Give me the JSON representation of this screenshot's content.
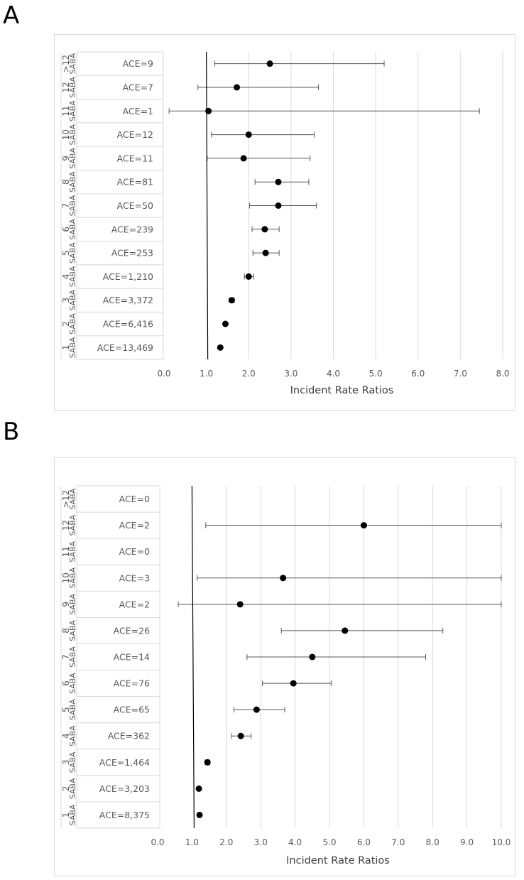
{
  "chart_data": [
    {
      "panel": "A",
      "type": "forest",
      "xlabel": "Incident Rate Ratios",
      "xlim": [
        0,
        8
      ],
      "xticks": [
        "0.0",
        "1.0",
        "2.0",
        "3.0",
        "4.0",
        "5.0",
        "6.0",
        "7.0",
        "8.0"
      ],
      "reference_x": 1,
      "group_label": "SABA",
      "rows": [
        {
          "group": ">12",
          "label": "ACE=9",
          "value": 2.5,
          "lo": 1.2,
          "hi": 5.2
        },
        {
          "group": "12",
          "label": "ACE=7",
          "value": 1.72,
          "lo": 0.8,
          "hi": 3.65
        },
        {
          "group": "11",
          "label": "ACE=1",
          "value": 1.05,
          "lo": 0.12,
          "hi": 7.45
        },
        {
          "group": "10",
          "label": "ACE=12",
          "value": 2.0,
          "lo": 1.12,
          "hi": 3.55
        },
        {
          "group": "9",
          "label": "ACE=11",
          "value": 1.88,
          "lo": 1.02,
          "hi": 3.45
        },
        {
          "group": "8",
          "label": "ACE=81",
          "value": 2.7,
          "lo": 2.15,
          "hi": 3.42
        },
        {
          "group": "7",
          "label": "ACE=50",
          "value": 2.7,
          "lo": 2.02,
          "hi": 3.6
        },
        {
          "group": "6",
          "label": "ACE=239",
          "value": 2.38,
          "lo": 2.08,
          "hi": 2.72
        },
        {
          "group": "5",
          "label": "ACE=253",
          "value": 2.4,
          "lo": 2.1,
          "hi": 2.72
        },
        {
          "group": "4",
          "label": "ACE=1,210",
          "value": 2.0,
          "lo": 1.9,
          "hi": 2.12
        },
        {
          "group": "3",
          "label": "ACE=3,372",
          "value": 1.6,
          "lo": 1.54,
          "hi": 1.66
        },
        {
          "group": "2",
          "label": "ACE=6,416",
          "value": 1.45,
          "lo": 1.42,
          "hi": 1.48
        },
        {
          "group": "1",
          "label": "ACE=13,469",
          "value": 1.33,
          "lo": 1.31,
          "hi": 1.35
        }
      ]
    },
    {
      "panel": "B",
      "type": "forest",
      "xlabel": "Incident Rate Ratios",
      "xlim": [
        0,
        10
      ],
      "xticks": [
        "0.0",
        "1.0",
        "2.0",
        "3.0",
        "4.0",
        "5.0",
        "6.0",
        "7.0",
        "8.0",
        "9.0",
        "10.0"
      ],
      "reference_x": 1,
      "group_label": "SABA",
      "rows": [
        {
          "group": ">12",
          "label": "ACE=0",
          "value": null,
          "lo": null,
          "hi": null
        },
        {
          "group": "12",
          "label": "ACE=2",
          "value": 6.0,
          "lo": 1.4,
          "hi": 10.0
        },
        {
          "group": "11",
          "label": "ACE=0",
          "value": null,
          "lo": null,
          "hi": null
        },
        {
          "group": "10",
          "label": "ACE=3",
          "value": 3.65,
          "lo": 1.15,
          "hi": 10.0
        },
        {
          "group": "9",
          "label": "ACE=2",
          "value": 2.4,
          "lo": 0.6,
          "hi": 10.0
        },
        {
          "group": "8",
          "label": "ACE=26",
          "value": 5.45,
          "lo": 3.6,
          "hi": 8.3
        },
        {
          "group": "7",
          "label": "ACE=14",
          "value": 4.5,
          "lo": 2.6,
          "hi": 7.8
        },
        {
          "group": "6",
          "label": "ACE=76",
          "value": 3.95,
          "lo": 3.05,
          "hi": 5.05
        },
        {
          "group": "5",
          "label": "ACE=65",
          "value": 2.88,
          "lo": 2.22,
          "hi": 3.7
        },
        {
          "group": "4",
          "label": "ACE=362",
          "value": 2.42,
          "lo": 2.15,
          "hi": 2.72
        },
        {
          "group": "3",
          "label": "ACE=1,464",
          "value": 1.45,
          "lo": 1.38,
          "hi": 1.52
        },
        {
          "group": "2",
          "label": "ACE=3,203",
          "value": 1.2,
          "lo": 1.17,
          "hi": 1.23
        },
        {
          "group": "1",
          "label": "ACE=8,375",
          "value": 1.22,
          "lo": 1.19,
          "hi": 1.25
        }
      ]
    }
  ],
  "panels": {
    "a_label": "A",
    "b_label": "B"
  }
}
